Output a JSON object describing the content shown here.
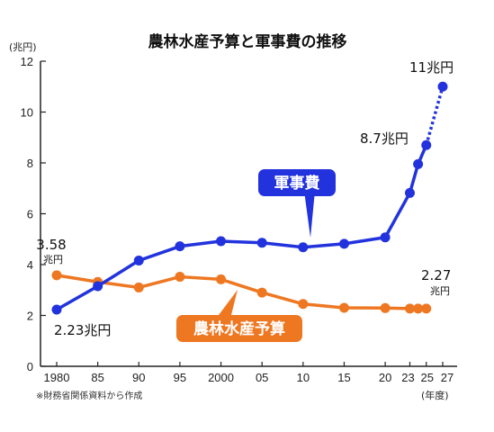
{
  "chart_data": {
    "type": "line",
    "title": "農林水産予算と軍事費の推移",
    "ylabel": "(兆円)",
    "xlabel": "(年度)",
    "ylim": [
      0,
      12
    ],
    "yticks": [
      "0",
      "2",
      "4",
      "6",
      "8",
      "10",
      "12"
    ],
    "xticks": [
      "1980",
      "85",
      "90",
      "95",
      "2000",
      "05",
      "10",
      "15",
      "20",
      "23",
      "25",
      "27"
    ],
    "grid": false,
    "series": [
      {
        "name": "軍事費",
        "color": "#2233dd",
        "x": [
          1980,
          1985,
          1990,
          1995,
          2000,
          2005,
          2010,
          2015,
          2020,
          2023,
          2024,
          2025,
          2027
        ],
        "y": [
          2.23,
          3.15,
          4.16,
          4.72,
          4.92,
          4.86,
          4.68,
          4.82,
          5.07,
          6.82,
          7.95,
          8.7,
          11
        ],
        "projected_from_x": 2025
      },
      {
        "name": "農林水産予算",
        "color": "#ee7722",
        "x": [
          1980,
          1985,
          1990,
          1995,
          2000,
          2005,
          2010,
          2015,
          2020,
          2023,
          2024,
          2025
        ],
        "y": [
          3.58,
          3.32,
          3.1,
          3.52,
          3.42,
          2.9,
          2.45,
          2.3,
          2.29,
          2.27,
          2.27,
          2.27
        ]
      }
    ],
    "annotations": {
      "military_start": "2.23兆円",
      "military_2025": "8.7兆円",
      "military_2027": "11兆円",
      "agri_start_value": "3.58",
      "agri_start_unit": "兆円",
      "agri_end_value": "2.27",
      "agri_end_unit": "兆円"
    },
    "callouts": {
      "military": "軍事費",
      "agri": "農林水産予算"
    },
    "source_note": "※財務省関係資料から作成"
  }
}
